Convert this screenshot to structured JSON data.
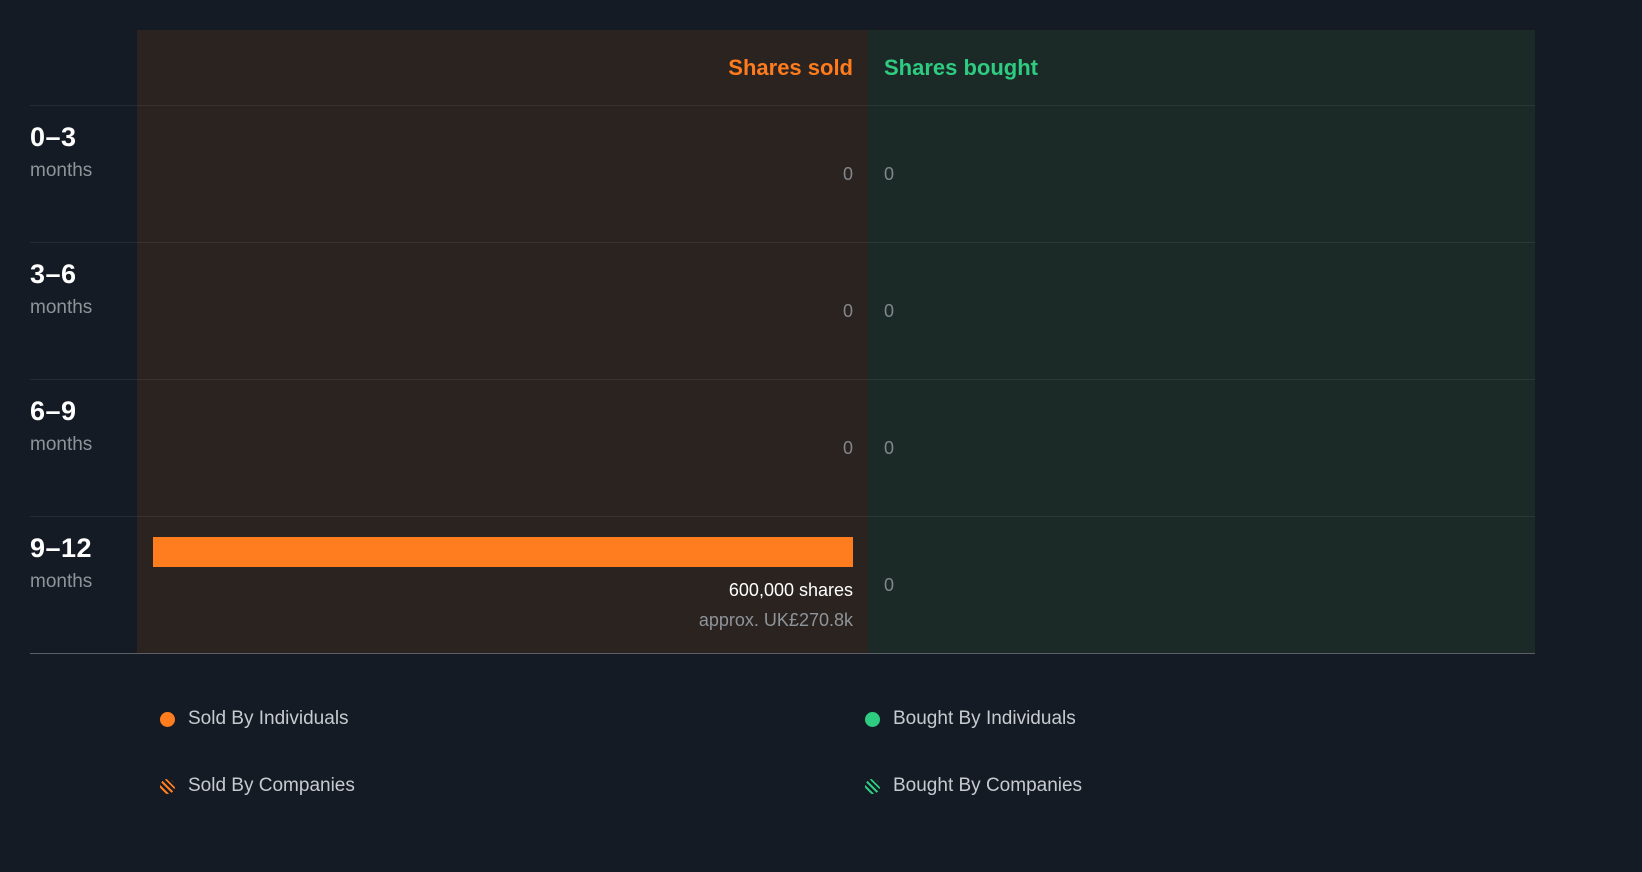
{
  "header": {
    "sold_label": "Shares sold",
    "bought_label": "Shares bought"
  },
  "rows": [
    {
      "period": "0–3",
      "unit": "months",
      "sold": "0",
      "bought": "0"
    },
    {
      "period": "3–6",
      "unit": "months",
      "sold": "0",
      "bought": "0"
    },
    {
      "period": "6–9",
      "unit": "months",
      "sold": "0",
      "bought": "0"
    },
    {
      "period": "9–12",
      "unit": "months",
      "sold_shares": "600,000 shares",
      "sold_approx": "approx. UK£270.8k",
      "bought": "0"
    }
  ],
  "legend": {
    "items": [
      {
        "label": "Sold By Individuals"
      },
      {
        "label": "Sold By Companies"
      },
      {
        "label": "Bought By Individuals"
      },
      {
        "label": "Bought By Companies"
      }
    ]
  },
  "colors": {
    "sold_accent": "#ff7d1e",
    "bought_accent": "#2ecc81",
    "background": "#151b24",
    "sold_region_bg": "#2a231f",
    "bought_region_bg": "#1b2a27"
  },
  "chart_data": {
    "type": "bar",
    "orientation": "horizontal",
    "categories": [
      "0–3 months",
      "3–6 months",
      "6–9 months",
      "9–12 months"
    ],
    "series": [
      {
        "name": "Shares sold",
        "color": "#ff7d1e",
        "values": [
          0,
          0,
          0,
          600000
        ]
      },
      {
        "name": "Shares bought",
        "color": "#2ecc81",
        "values": [
          0,
          0,
          0,
          0
        ]
      }
    ],
    "annotations": [
      {
        "category": "9–12 months",
        "series": "Shares sold",
        "label": "600,000 shares",
        "sublabel": "approx. UK£270.8k"
      }
    ],
    "legend_position": "bottom",
    "legend": [
      "Sold By Individuals",
      "Sold By Companies",
      "Bought By Individuals",
      "Bought By Companies"
    ],
    "grid": false
  }
}
